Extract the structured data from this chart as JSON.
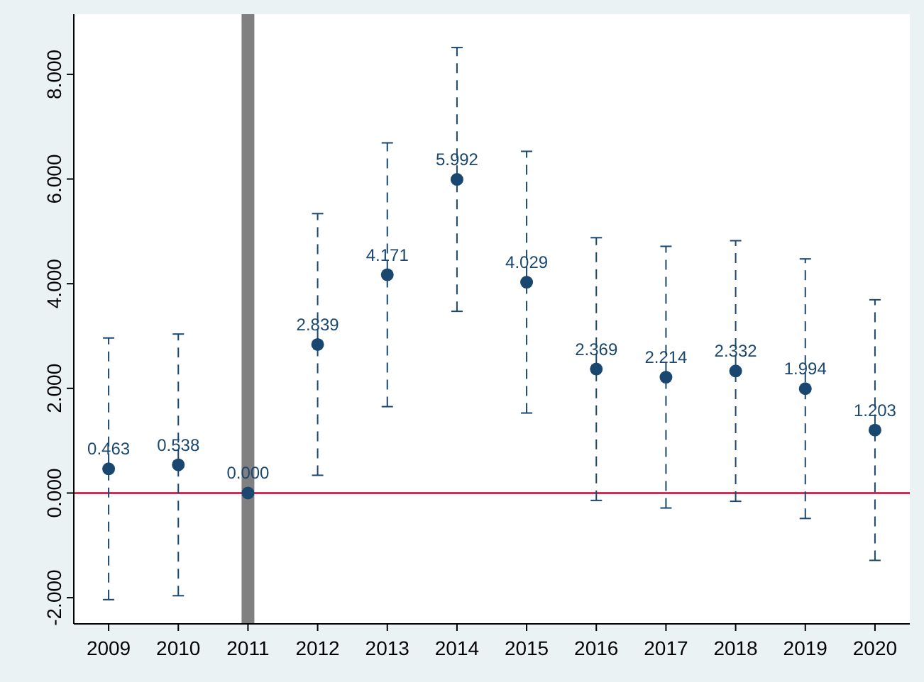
{
  "chart_data": {
    "type": "scatter",
    "categories": [
      "2009",
      "2010",
      "2011",
      "2012",
      "2013",
      "2014",
      "2015",
      "2016",
      "2017",
      "2018",
      "2019",
      "2020"
    ],
    "series": [
      {
        "color": "#1a476f",
        "values": [
          0.463,
          0.538,
          0,
          2.839,
          4.171,
          5.992,
          4.029,
          2.369,
          2.214,
          2.332,
          1.994,
          1.203
        ],
        "errors": [
          2.5,
          2.5,
          null,
          2.5,
          2.52,
          2.52,
          2.5,
          2.51,
          2.5,
          2.49,
          2.48,
          2.49
        ],
        "value_labels": [
          "0.463",
          "0.538",
          "0.000",
          "2.839",
          "4.171",
          "5.992",
          "4.029",
          "2.369",
          "2.214",
          "2.332",
          "1.994",
          "1.203"
        ]
      }
    ],
    "ylim": [
      -2.5,
      9.15
    ],
    "yticks": [
      {
        "value": -2,
        "label": "-2.000"
      },
      {
        "value": 0,
        "label": "0.000"
      },
      {
        "value": 2,
        "label": "2.000"
      },
      {
        "value": 4,
        "label": "4.000"
      },
      {
        "value": 6,
        "label": "6.000"
      },
      {
        "value": 8,
        "label": "8.000"
      }
    ],
    "ref_lines": [
      {
        "axis": "y",
        "value": 0,
        "color": "#c10534"
      },
      {
        "axis": "x",
        "value": "2011",
        "color": "#808080"
      }
    ],
    "marker": "circle",
    "grid": false
  }
}
